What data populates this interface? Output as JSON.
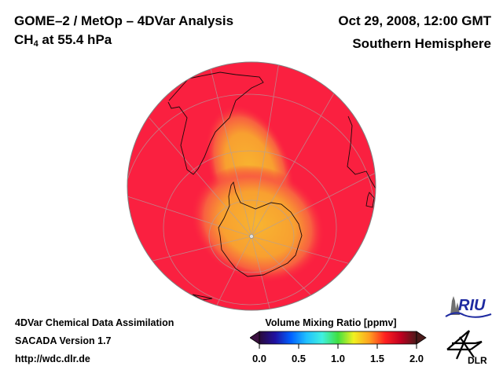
{
  "header": {
    "title_line1": "GOME–2 / MetOp – 4DVar Analysis",
    "species": "CH",
    "species_subscript": "4",
    "level_text": " at 55.4 hPa",
    "datetime": "Oct 29, 2008, 12:00 GMT",
    "region": "Southern Hemisphere"
  },
  "footer": {
    "line1": "4DVar Chemical Data Assimilation",
    "line2": "SACADA Version 1.7",
    "line3": "http://wdc.dlr.de"
  },
  "colorbar": {
    "title": "Volume Mixing Ratio [ppmv]",
    "ticks": [
      "0.0",
      "0.5",
      "1.0",
      "1.5",
      "2.0"
    ],
    "range": [
      0.0,
      2.0
    ],
    "colors": [
      "#2a0a3a",
      "#2010a0",
      "#0060ff",
      "#20c0ff",
      "#40f0e0",
      "#40e040",
      "#f0f020",
      "#ffa020",
      "#ff2020",
      "#c00020",
      "#4a1a1a"
    ]
  },
  "map": {
    "projection": "orthographic, south pole",
    "background_value_color": "#fa2040",
    "anomaly_color": "#f8b030"
  },
  "logos": {
    "riu": "RIU",
    "dlr": "DLR"
  }
}
